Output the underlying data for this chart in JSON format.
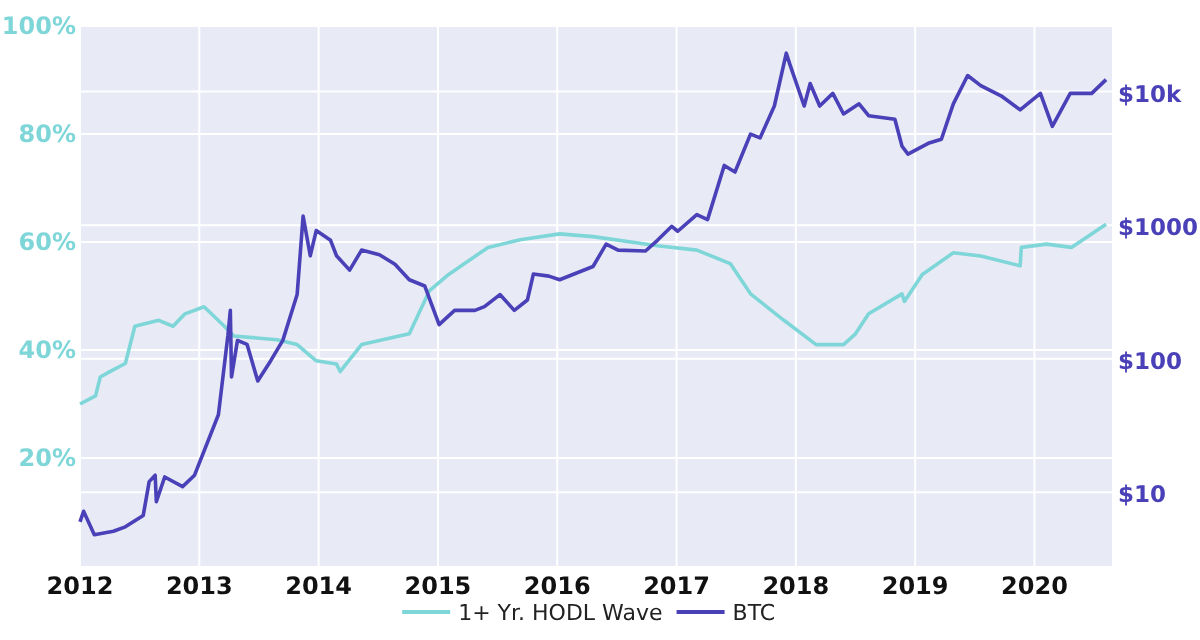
{
  "chart_data": {
    "type": "line",
    "xlim": [
      2012,
      2020.65
    ],
    "xticks": [
      2012,
      2013,
      2014,
      2015,
      2016,
      2017,
      2018,
      2019,
      2020
    ],
    "ylim": [
      0,
      100
    ],
    "yticks": [
      {
        "value": 20,
        "label": "20%"
      },
      {
        "value": 40,
        "label": "40%"
      },
      {
        "value": 60,
        "label": "60%"
      },
      {
        "value": 80,
        "label": "80%"
      },
      {
        "value": 100,
        "label": "100%"
      }
    ],
    "y2lim": [
      2.8,
      31000
    ],
    "y2ticks": [
      {
        "value": 10,
        "label": "$10"
      },
      {
        "value": 100,
        "label": "$100"
      },
      {
        "value": 1000,
        "label": "$1000"
      },
      {
        "value": 10000,
        "label": "$10k"
      }
    ],
    "log": "y2",
    "grid": true,
    "legend": "bottom",
    "marker": "none",
    "line_style": "solid",
    "series": [
      {
        "name": "1+ Yr. HODL Wave",
        "color": "#7fd6d8",
        "x": [
          2012.0,
          2012.13,
          2012.17,
          2012.25,
          2012.38,
          2012.46,
          2012.66,
          2012.78,
          2012.88,
          2013.04,
          2013.21,
          2013.29,
          2013.65,
          2013.82,
          2013.98,
          2014.15,
          2014.18,
          2014.36,
          2014.76,
          2014.93,
          2015.09,
          2015.42,
          2015.69,
          2016.02,
          2016.3,
          2016.84,
          2017.17,
          2017.45,
          2017.62,
          2017.9,
          2018.17,
          2018.4,
          2018.5,
          2018.61,
          2018.89,
          2018.91,
          2019.06,
          2019.32,
          2019.55,
          2019.88,
          2019.89,
          2020.1,
          2020.31,
          2020.6
        ],
        "values": [
          30,
          31.5,
          35,
          36,
          37.5,
          44.4,
          45.5,
          44.4,
          46.7,
          48,
          44.4,
          42.6,
          41.9,
          41,
          38,
          37.4,
          36,
          41,
          43,
          51,
          54,
          59,
          60.4,
          61.5,
          61,
          59.3,
          58.5,
          56,
          50.4,
          45.5,
          41,
          41,
          43,
          46.7,
          50.4,
          49,
          54,
          58,
          57.4,
          55.6,
          59,
          59.6,
          59,
          63.3
        ]
      },
      {
        "name": "BTC",
        "color": "#4a40b8",
        "axis": "y2",
        "x": [
          2012.0,
          2012.03,
          2012.12,
          2012.28,
          2012.38,
          2012.53,
          2012.58,
          2012.63,
          2012.64,
          2012.71,
          2012.86,
          2012.96,
          2013.16,
          2013.24,
          2013.26,
          2013.27,
          2013.32,
          2013.4,
          2013.49,
          2013.6,
          2013.7,
          2013.82,
          2013.87,
          2013.93,
          2013.98,
          2014.1,
          2014.15,
          2014.26,
          2014.36,
          2014.51,
          2014.64,
          2014.76,
          2014.89,
          2015.01,
          2015.14,
          2015.31,
          2015.39,
          2015.52,
          2015.64,
          2015.75,
          2015.8,
          2015.93,
          2016.02,
          2016.3,
          2016.41,
          2016.51,
          2016.74,
          2016.84,
          2016.96,
          2017.01,
          2017.17,
          2017.26,
          2017.4,
          2017.49,
          2017.62,
          2017.7,
          2017.82,
          2017.92,
          2017.95,
          2018.07,
          2018.12,
          2018.2,
          2018.31,
          2018.4,
          2018.53,
          2018.61,
          2018.83,
          2018.89,
          2018.94,
          2019.11,
          2019.22,
          2019.32,
          2019.44,
          2019.55,
          2019.72,
          2019.88,
          2020.05,
          2020.15,
          2020.3,
          2020.48,
          2020.6
        ],
        "values": [
          6,
          7.2,
          4.8,
          5.1,
          5.5,
          6.7,
          12,
          13.4,
          8.5,
          13,
          11,
          13.4,
          38,
          150,
          230,
          73,
          137,
          128,
          68,
          97,
          137,
          302,
          1170,
          590,
          910,
          770,
          590,
          460,
          650,
          600,
          510,
          390,
          350,
          180,
          230,
          230,
          245,
          302,
          230,
          275,
          430,
          415,
          390,
          490,
          720,
          650,
          640,
          770,
          980,
          900,
          1200,
          1100,
          2800,
          2500,
          4800,
          4500,
          7800,
          19400,
          16000,
          7800,
          11500,
          7800,
          9700,
          6800,
          8100,
          6600,
          6200,
          3900,
          3400,
          4100,
          4400,
          8100,
          13200,
          11100,
          9300,
          7300,
          9700,
          5500,
          9700,
          9700,
          12300
        ]
      }
    ]
  }
}
